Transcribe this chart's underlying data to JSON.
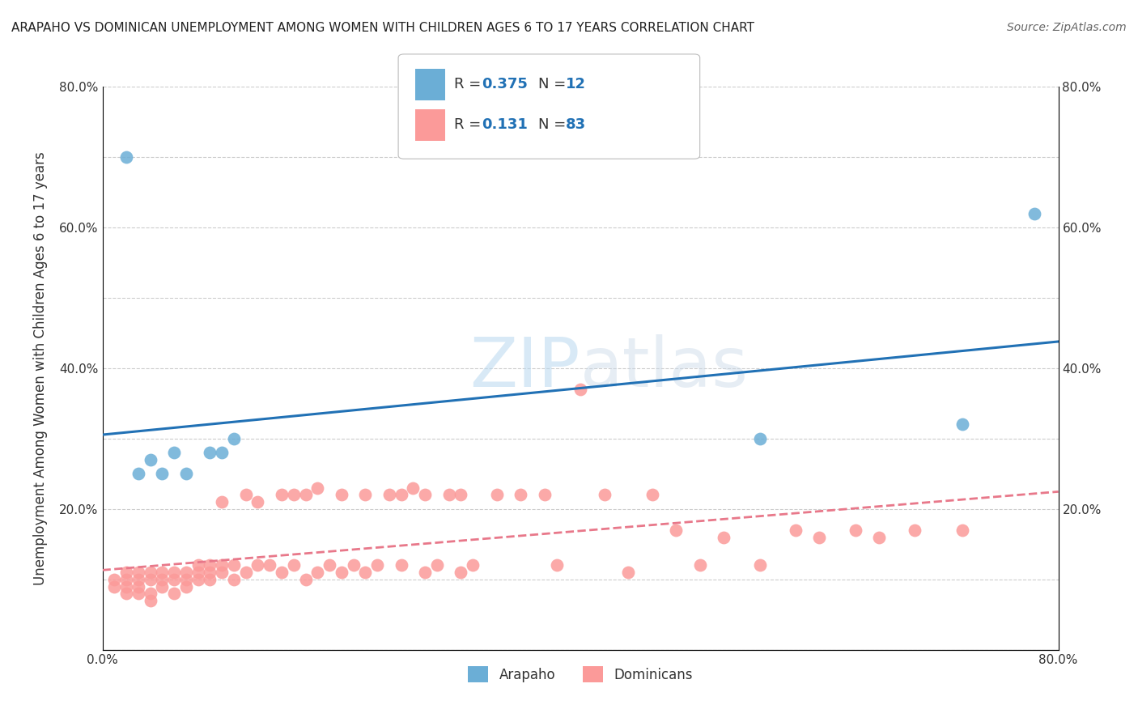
{
  "title": "ARAPAHO VS DOMINICAN UNEMPLOYMENT AMONG WOMEN WITH CHILDREN AGES 6 TO 17 YEARS CORRELATION CHART",
  "source": "Source: ZipAtlas.com",
  "ylabel": "Unemployment Among Women with Children Ages 6 to 17 years",
  "xlim": [
    0.0,
    0.8
  ],
  "ylim": [
    0.0,
    0.8
  ],
  "x_tick_positions": [
    0.0,
    0.1,
    0.2,
    0.3,
    0.4,
    0.5,
    0.6,
    0.7,
    0.8
  ],
  "x_tick_labels": [
    "0.0%",
    "",
    "",
    "",
    "",
    "",
    "",
    "",
    "80.0%"
  ],
  "y_tick_positions": [
    0.0,
    0.1,
    0.2,
    0.3,
    0.4,
    0.5,
    0.6,
    0.7,
    0.8
  ],
  "y_tick_labels": [
    "",
    "",
    "20.0%",
    "",
    "40.0%",
    "",
    "60.0%",
    "",
    "80.0%"
  ],
  "arapaho_color": "#6baed6",
  "arapaho_line_color": "#2171b5",
  "dominican_color": "#fb9a99",
  "dominican_line_color": "#e8788a",
  "arapaho_R": "0.375",
  "arapaho_N": "12",
  "dominican_R": "0.131",
  "dominican_N": "83",
  "legend_label_arapaho": "Arapaho",
  "legend_label_dominican": "Dominicans",
  "watermark_zip": "ZIP",
  "watermark_atlas": "atlas",
  "background_color": "#ffffff",
  "grid_color": "#cccccc",
  "arapaho_x": [
    0.02,
    0.03,
    0.04,
    0.05,
    0.06,
    0.07,
    0.09,
    0.1,
    0.11,
    0.55,
    0.72,
    0.78
  ],
  "arapaho_y": [
    0.7,
    0.25,
    0.27,
    0.25,
    0.28,
    0.25,
    0.28,
    0.28,
    0.3,
    0.3,
    0.32,
    0.62
  ],
  "dominican_x": [
    0.01,
    0.01,
    0.02,
    0.02,
    0.02,
    0.02,
    0.03,
    0.03,
    0.03,
    0.03,
    0.04,
    0.04,
    0.04,
    0.04,
    0.05,
    0.05,
    0.05,
    0.06,
    0.06,
    0.06,
    0.07,
    0.07,
    0.07,
    0.08,
    0.08,
    0.08,
    0.09,
    0.09,
    0.09,
    0.1,
    0.1,
    0.1,
    0.11,
    0.11,
    0.12,
    0.12,
    0.13,
    0.13,
    0.14,
    0.15,
    0.15,
    0.16,
    0.16,
    0.17,
    0.17,
    0.18,
    0.18,
    0.19,
    0.2,
    0.2,
    0.21,
    0.22,
    0.22,
    0.23,
    0.24,
    0.25,
    0.25,
    0.26,
    0.27,
    0.27,
    0.28,
    0.29,
    0.3,
    0.3,
    0.31,
    0.33,
    0.35,
    0.37,
    0.38,
    0.4,
    0.42,
    0.44,
    0.46,
    0.48,
    0.5,
    0.52,
    0.55,
    0.58,
    0.6,
    0.63,
    0.65,
    0.68,
    0.72
  ],
  "dominican_y": [
    0.09,
    0.1,
    0.08,
    0.09,
    0.1,
    0.11,
    0.08,
    0.09,
    0.1,
    0.11,
    0.07,
    0.08,
    0.1,
    0.11,
    0.09,
    0.1,
    0.11,
    0.08,
    0.1,
    0.11,
    0.09,
    0.1,
    0.11,
    0.1,
    0.11,
    0.12,
    0.1,
    0.11,
    0.12,
    0.11,
    0.12,
    0.21,
    0.1,
    0.12,
    0.11,
    0.22,
    0.12,
    0.21,
    0.12,
    0.11,
    0.22,
    0.12,
    0.22,
    0.1,
    0.22,
    0.11,
    0.23,
    0.12,
    0.11,
    0.22,
    0.12,
    0.11,
    0.22,
    0.12,
    0.22,
    0.12,
    0.22,
    0.23,
    0.11,
    0.22,
    0.12,
    0.22,
    0.11,
    0.22,
    0.12,
    0.22,
    0.22,
    0.22,
    0.12,
    0.37,
    0.22,
    0.11,
    0.22,
    0.17,
    0.12,
    0.16,
    0.12,
    0.17,
    0.16,
    0.17,
    0.16,
    0.17,
    0.17
  ]
}
